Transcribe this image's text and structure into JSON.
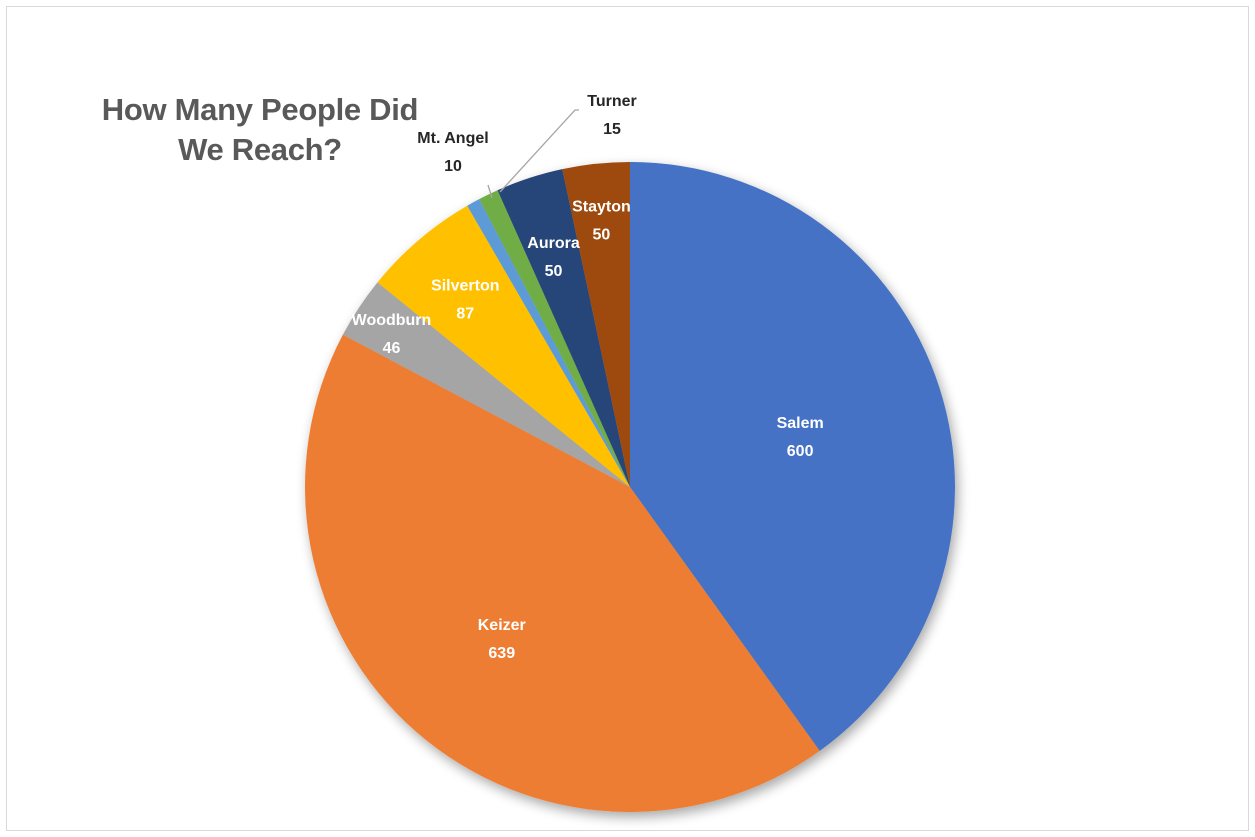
{
  "chart_data": {
    "type": "pie",
    "title_lines": [
      "How Many People Did",
      "We Reach?"
    ],
    "start_angle_deg": 0,
    "direction": "clockwise",
    "categories": [
      "Salem",
      "Keizer",
      "Woodburn",
      "Silverton",
      "Mt. Angel",
      "Turner",
      "Aurora",
      "Stayton"
    ],
    "values": [
      600,
      639,
      46,
      87,
      10,
      15,
      50,
      50
    ],
    "colors": [
      "#4472C4",
      "#ED7D31",
      "#A5A5A5",
      "#FFC000",
      "#5B9BD5",
      "#70AD47",
      "#264478",
      "#9E480E"
    ],
    "label_colors": [
      "#ffffff",
      "#ffffff",
      "#ffffff",
      "#ffffff",
      "#262626",
      "#262626",
      "#ffffff",
      "#ffffff"
    ],
    "outside_labels": [
      "Mt. Angel",
      "Turner"
    ],
    "legend": "none"
  }
}
